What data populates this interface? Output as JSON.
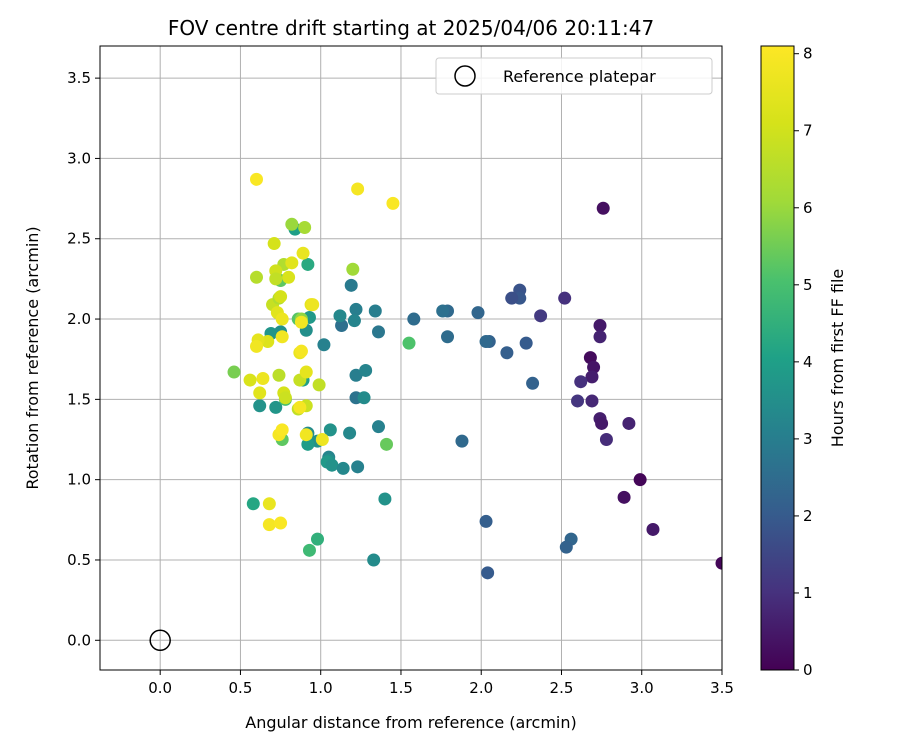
{
  "chart_data": {
    "type": "scatter",
    "title": "FOV centre drift starting at 2025/04/06 20:11:47",
    "xlabel": "Angular distance from reference (arcmin)",
    "ylabel": "Rotation from reference (arcmin)",
    "xlim": [
      -0.375,
      3.5
    ],
    "ylim": [
      -0.185,
      3.7
    ],
    "xticks": [
      "0.0",
      "0.5",
      "1.0",
      "1.5",
      "2.0",
      "2.5",
      "3.0",
      "3.5"
    ],
    "yticks": [
      "0.0",
      "0.5",
      "1.0",
      "1.5",
      "2.0",
      "2.5",
      "3.0",
      "3.5"
    ],
    "grid": true,
    "legend": {
      "placement": "top-right",
      "label": "Reference platepar"
    },
    "reference_point": [
      0,
      0
    ],
    "colorbar": {
      "label": "Hours from first FF file",
      "range": [
        0,
        8.1
      ],
      "ticks": [
        "0",
        "1",
        "2",
        "3",
        "4",
        "5",
        "6",
        "7",
        "8"
      ],
      "colormap": "viridis"
    },
    "points": [
      [
        3.5,
        0.48,
        0.1
      ],
      [
        2.76,
        2.69,
        0.3
      ],
      [
        2.68,
        1.76,
        0.2
      ],
      [
        2.7,
        1.7,
        0.4
      ],
      [
        2.69,
        1.64,
        0.6
      ],
      [
        2.74,
        1.96,
        0.5
      ],
      [
        2.74,
        1.89,
        0.7
      ],
      [
        2.69,
        1.49,
        0.8
      ],
      [
        2.74,
        1.38,
        0.6
      ],
      [
        2.75,
        1.35,
        0.5
      ],
      [
        2.78,
        1.25,
        0.9
      ],
      [
        2.92,
        1.35,
        0.7
      ],
      [
        2.99,
        1.0,
        0.1
      ],
      [
        2.89,
        0.89,
        0.3
      ],
      [
        3.07,
        0.69,
        0.5
      ],
      [
        2.62,
        1.61,
        1.0
      ],
      [
        2.6,
        1.49,
        1.1
      ],
      [
        2.52,
        2.13,
        1.0
      ],
      [
        2.37,
        2.02,
        1.2
      ],
      [
        2.24,
        2.18,
        1.8
      ],
      [
        2.24,
        2.13,
        1.9
      ],
      [
        2.19,
        2.13,
        1.7
      ],
      [
        2.28,
        1.85,
        2.0
      ],
      [
        2.32,
        1.6,
        2.2
      ],
      [
        2.16,
        1.79,
        2.1
      ],
      [
        2.05,
        1.86,
        2.2
      ],
      [
        2.03,
        1.86,
        2.4
      ],
      [
        1.98,
        2.04,
        2.3
      ],
      [
        2.03,
        0.74,
        2.1
      ],
      [
        2.04,
        0.42,
        2.0
      ],
      [
        2.56,
        0.63,
        2.3
      ],
      [
        2.53,
        0.58,
        2.2
      ],
      [
        1.79,
        2.05,
        2.4
      ],
      [
        1.76,
        2.05,
        2.6
      ],
      [
        1.79,
        1.89,
        2.5
      ],
      [
        1.88,
        1.24,
        2.4
      ],
      [
        1.58,
        2.0,
        2.5
      ],
      [
        1.34,
        2.05,
        3.0
      ],
      [
        1.36,
        1.92,
        2.8
      ],
      [
        1.22,
        2.06,
        3.0
      ],
      [
        1.19,
        2.21,
        2.9
      ],
      [
        1.21,
        1.99,
        3.2
      ],
      [
        1.13,
        1.96,
        2.6
      ],
      [
        1.12,
        2.02,
        3.3
      ],
      [
        1.02,
        1.84,
        3.1
      ],
      [
        1.22,
        1.65,
        3.0
      ],
      [
        1.28,
        1.68,
        3.2
      ],
      [
        1.22,
        1.51,
        2.7
      ],
      [
        1.27,
        1.51,
        3.4
      ],
      [
        1.36,
        1.33,
        3.1
      ],
      [
        1.18,
        1.29,
        3.3
      ],
      [
        1.06,
        1.31,
        3.6
      ],
      [
        1.05,
        1.14,
        3.2
      ],
      [
        1.05,
        1.12,
        3.5
      ],
      [
        1.04,
        1.11,
        3.8
      ],
      [
        1.07,
        1.09,
        3.6
      ],
      [
        1.14,
        1.07,
        3.3
      ],
      [
        1.23,
        1.08,
        3.1
      ],
      [
        1.4,
        0.88,
        3.6
      ],
      [
        1.33,
        0.5,
        3.4
      ],
      [
        0.98,
        1.24,
        3.6
      ],
      [
        0.92,
        1.22,
        3.9
      ],
      [
        0.92,
        1.29,
        3.4
      ],
      [
        0.89,
        1.62,
        4.0
      ],
      [
        0.92,
        2.34,
        4.3
      ],
      [
        0.93,
        2.01,
        3.8
      ],
      [
        0.91,
        1.93,
        3.5
      ],
      [
        0.84,
        2.56,
        4.0
      ],
      [
        0.75,
        1.92,
        3.5
      ],
      [
        0.69,
        1.91,
        3.7
      ],
      [
        0.72,
        1.45,
        3.7
      ],
      [
        0.62,
        1.46,
        3.6
      ],
      [
        0.58,
        0.85,
        4.2
      ],
      [
        0.98,
        0.63,
        4.5
      ],
      [
        0.93,
        0.56,
        4.8
      ],
      [
        1.55,
        1.85,
        5.1
      ],
      [
        1.41,
        1.22,
        5.4
      ],
      [
        0.46,
        1.67,
        5.6
      ],
      [
        0.86,
        2.0,
        5.2
      ],
      [
        0.88,
        2.0,
        5.9
      ],
      [
        0.75,
        2.24,
        5.3
      ],
      [
        0.78,
        1.5,
        5.0
      ],
      [
        0.76,
        1.25,
        5.3
      ],
      [
        0.82,
        2.59,
        6.0
      ],
      [
        0.9,
        2.57,
        6.2
      ],
      [
        1.2,
        2.31,
        6.1
      ],
      [
        0.77,
        2.34,
        6.4
      ],
      [
        0.6,
        2.26,
        6.5
      ],
      [
        0.86,
        1.44,
        6.7
      ],
      [
        0.74,
        1.65,
        6.6
      ],
      [
        0.87,
        1.62,
        6.8
      ],
      [
        0.91,
        1.46,
        6.9
      ],
      [
        0.99,
        1.59,
        6.7
      ],
      [
        0.72,
        2.3,
        7.0
      ],
      [
        0.72,
        2.25,
        6.7
      ],
      [
        0.7,
        2.09,
        6.8
      ],
      [
        0.74,
        2.13,
        6.4
      ],
      [
        0.75,
        2.14,
        7.1
      ],
      [
        0.67,
        1.86,
        7.3
      ],
      [
        0.61,
        1.87,
        7.5
      ],
      [
        0.56,
        1.62,
        7.2
      ],
      [
        0.62,
        1.54,
        7.4
      ],
      [
        0.77,
        1.54,
        7.1
      ],
      [
        0.78,
        1.51,
        6.9
      ],
      [
        0.71,
        2.47,
        7.1
      ],
      [
        0.82,
        2.35,
        7.4
      ],
      [
        0.89,
        2.41,
        7.6
      ],
      [
        0.8,
        2.26,
        7.2
      ],
      [
        0.73,
        2.04,
        7.4
      ],
      [
        0.76,
        2.0,
        7.7
      ],
      [
        0.94,
        2.09,
        7.5
      ],
      [
        0.95,
        2.09,
        7.7
      ],
      [
        0.88,
        1.98,
        7.8
      ],
      [
        0.87,
        1.79,
        7.6
      ],
      [
        0.88,
        1.8,
        7.9
      ],
      [
        0.91,
        1.67,
        7.5
      ],
      [
        0.6,
        1.83,
        7.8
      ],
      [
        0.64,
        1.63,
        7.7
      ],
      [
        0.76,
        1.89,
        7.8
      ],
      [
        0.87,
        1.45,
        7.9
      ],
      [
        0.91,
        1.28,
        7.8
      ],
      [
        0.74,
        1.28,
        7.9
      ],
      [
        0.76,
        1.31,
        8.0
      ],
      [
        1.01,
        1.25,
        7.7
      ],
      [
        0.68,
        0.85,
        7.6
      ],
      [
        0.68,
        0.72,
        7.9
      ],
      [
        0.75,
        0.73,
        8.0
      ],
      [
        0.6,
        2.87,
        8.0
      ],
      [
        1.23,
        2.81,
        7.9
      ],
      [
        1.45,
        2.72,
        8.0
      ]
    ]
  }
}
